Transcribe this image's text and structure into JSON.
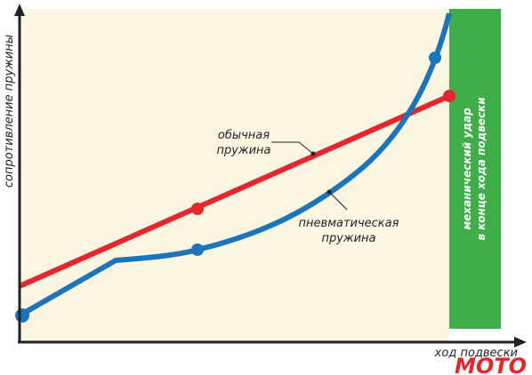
{
  "axes": {
    "y_label": "сопротивление пружины",
    "x_label": "ход подвески"
  },
  "curves": [
    {
      "label_lines": [
        "обычная",
        "пружина"
      ]
    },
    {
      "label_lines": [
        "пневматическая",
        "пружина"
      ]
    }
  ],
  "zone": {
    "label_lines": [
      "механический удар",
      "в конце хода подвески"
    ]
  },
  "logo": "MOTO"
}
